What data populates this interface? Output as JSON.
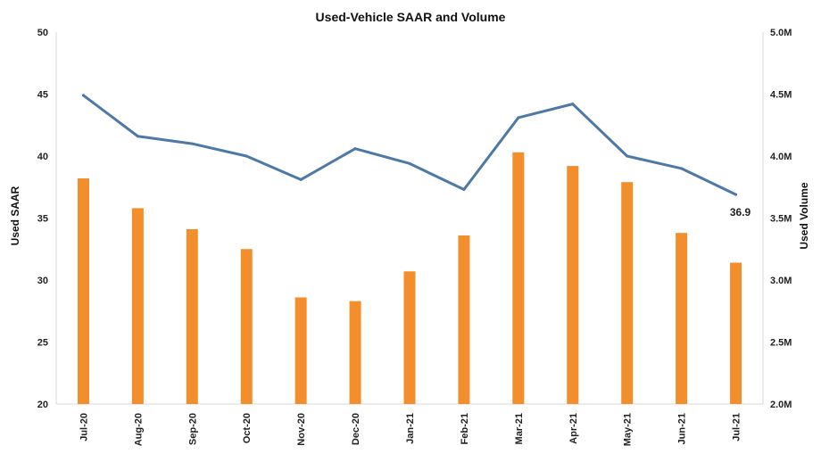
{
  "chart_data": {
    "type": "bar+line",
    "title": "Used-Vehicle SAAR and Volume",
    "categories": [
      "Jul-20",
      "Aug-20",
      "Sep-20",
      "Oct-20",
      "Nov-20",
      "Dec-20",
      "Jan-21",
      "Feb-21",
      "Mar-21",
      "Apr-21",
      "May-21",
      "Jun-21",
      "Jul-21"
    ],
    "series": [
      {
        "type": "bar",
        "axis": "right",
        "values": [
          3.82,
          3.58,
          3.41,
          3.25,
          2.86,
          2.83,
          3.07,
          3.36,
          4.03,
          3.92,
          3.79,
          3.38,
          3.14
        ],
        "color": "#F28E2B"
      },
      {
        "type": "line",
        "axis": "left",
        "values": [
          44.9,
          41.6,
          41.0,
          40.0,
          38.1,
          40.6,
          39.4,
          37.3,
          43.1,
          44.2,
          40.0,
          39.0,
          36.9
        ],
        "color": "#4E79A7"
      }
    ],
    "ylabel_left": "Used SAAR",
    "ylabel_right": "Used Volume",
    "ylim_left": [
      20,
      50
    ],
    "ylim_right": [
      2.0,
      5.0
    ],
    "yticks_left": [
      "20",
      "25",
      "30",
      "35",
      "40",
      "45",
      "50"
    ],
    "yticks_right": [
      "2.0M",
      "2.5M",
      "3.0M",
      "3.5M",
      "4.0M",
      "4.5M",
      "5.0M"
    ],
    "data_label": "36.9",
    "grid": false
  }
}
